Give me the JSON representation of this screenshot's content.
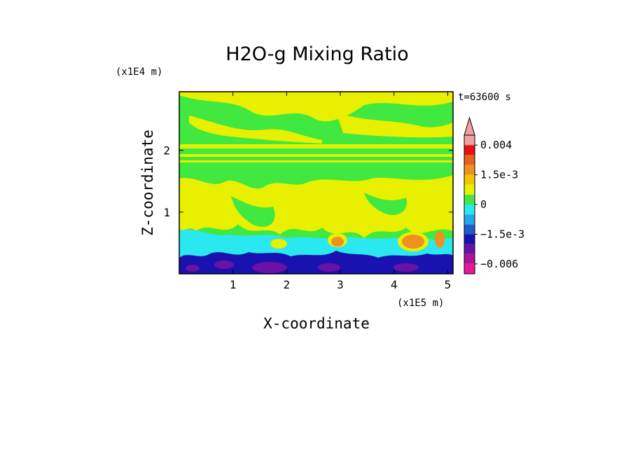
{
  "chart_data": {
    "type": "heatmap",
    "title": "H2O-g Mixing Ratio",
    "xlabel": "X-coordinate",
    "ylabel": "Z-coordinate",
    "x_unit": "(x1E5 m)",
    "y_unit": "(x1E4 m)",
    "time_label": "t=63600 s",
    "xlim": [
      0,
      5.1
    ],
    "ylim": [
      0,
      2.95
    ],
    "x_ticks": [
      {
        "value": 1,
        "label": "1"
      },
      {
        "value": 2,
        "label": "2"
      },
      {
        "value": 3,
        "label": "3"
      },
      {
        "value": 4,
        "label": "4"
      },
      {
        "value": 5,
        "label": "5"
      }
    ],
    "y_ticks": [
      {
        "value": 1,
        "label": "1"
      },
      {
        "value": 2,
        "label": "2"
      }
    ],
    "colorbar": {
      "levels": [
        -0.0075,
        -0.006,
        -0.0045,
        -0.0025,
        -0.0015,
        -0.001,
        -0.0005,
        0,
        0.0005,
        0.001,
        0.0015,
        0.002,
        0.003,
        0.004
      ],
      "colors": [
        "#e8189a",
        "#b0129a",
        "#6a12a8",
        "#1a12b0",
        "#1e5ac8",
        "#22a8e8",
        "#2ae8f0",
        "#40e840",
        "#e8f000",
        "#f0c800",
        "#f09020",
        "#e86020",
        "#e81010",
        "#f0a0a0"
      ],
      "tick_labels": [
        {
          "value": 0.004,
          "label": "0.004"
        },
        {
          "value": 0.0015,
          "label": "1.5e-3"
        },
        {
          "value": 0,
          "label": "0"
        },
        {
          "value": -0.0015,
          "label": "−1.5e-3"
        },
        {
          "value": -0.006,
          "label": "−0.006"
        }
      ]
    },
    "field_description_colors": {
      "green": "#40e840",
      "yellow": "#e8f000",
      "cyan": "#2ae8f0",
      "blue": "#1a12b0",
      "purple": "#6a12a8",
      "orange": "#f09020"
    }
  }
}
